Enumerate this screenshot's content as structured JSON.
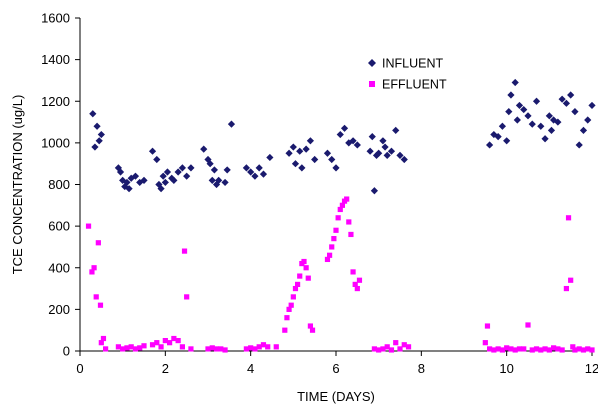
{
  "chart_data": {
    "type": "scatter",
    "xlabel": "TIME (DAYS)",
    "ylabel": "TCE CONCENTRATION (ug/L)",
    "xlim": [
      0,
      12
    ],
    "ylim": [
      0,
      1600
    ],
    "xticks": [
      "0",
      "2",
      "4",
      "6",
      "8",
      "10",
      "12"
    ],
    "yticks": [
      "0",
      "200",
      "400",
      "600",
      "800",
      "1000",
      "1200",
      "1400",
      "1600"
    ],
    "grid": false,
    "legend_position": "top-right (inside plot)",
    "series": [
      {
        "name": "INFLUENT",
        "marker": "diamond",
        "color": "#1a1a6e",
        "x": [
          0.3,
          0.35,
          0.4,
          0.45,
          0.5,
          0.9,
          0.95,
          1.0,
          1.05,
          1.1,
          1.15,
          1.2,
          1.3,
          1.4,
          1.5,
          1.7,
          1.8,
          1.85,
          1.9,
          1.95,
          2.0,
          2.05,
          2.15,
          2.2,
          2.3,
          2.4,
          2.5,
          2.6,
          2.9,
          3.0,
          3.05,
          3.1,
          3.15,
          3.2,
          3.25,
          3.4,
          3.45,
          3.55,
          3.9,
          4.0,
          4.1,
          4.2,
          4.3,
          4.45,
          4.9,
          5.0,
          5.05,
          5.15,
          5.2,
          5.3,
          5.4,
          5.5,
          5.8,
          5.9,
          6.0,
          6.1,
          6.2,
          6.3,
          6.4,
          6.5,
          6.8,
          6.85,
          6.9,
          6.95,
          7.0,
          7.1,
          7.15,
          7.2,
          7.3,
          7.4,
          7.5,
          7.6,
          9.6,
          9.7,
          9.8,
          9.9,
          10.0,
          10.05,
          10.1,
          10.2,
          10.25,
          10.3,
          10.4,
          10.5,
          10.6,
          10.7,
          10.8,
          10.9,
          11.0,
          11.05,
          11.1,
          11.2,
          11.3,
          11.4,
          11.5,
          11.6,
          11.7,
          11.8,
          11.9,
          12.0
        ],
        "y": [
          1140,
          980,
          1080,
          1010,
          1040,
          880,
          860,
          820,
          790,
          810,
          780,
          830,
          840,
          810,
          820,
          960,
          920,
          800,
          780,
          840,
          810,
          860,
          830,
          820,
          860,
          880,
          840,
          880,
          970,
          920,
          900,
          820,
          870,
          800,
          820,
          810,
          870,
          1090,
          880,
          860,
          840,
          880,
          850,
          930,
          950,
          980,
          900,
          960,
          880,
          970,
          1010,
          920,
          950,
          920,
          880,
          1040,
          1070,
          1000,
          1010,
          990,
          960,
          1030,
          770,
          940,
          950,
          1010,
          980,
          940,
          960,
          1060,
          940,
          920,
          990,
          1040,
          1030,
          1080,
          1010,
          1150,
          1230,
          1290,
          1110,
          1180,
          1160,
          1130,
          1090,
          1200,
          1080,
          1020,
          1130,
          1060,
          1110,
          1100,
          1210,
          1190,
          1230,
          1150,
          990,
          1060,
          1110,
          1180
        ]
      },
      {
        "name": "EFFLUENT",
        "marker": "square",
        "color": "#ff00ff",
        "x": [
          0.2,
          0.28,
          0.33,
          0.38,
          0.43,
          0.48,
          0.5,
          0.55,
          0.6,
          0.9,
          1.0,
          1.1,
          1.2,
          1.3,
          1.4,
          1.5,
          1.7,
          1.8,
          1.9,
          2.0,
          2.1,
          2.2,
          2.3,
          2.4,
          2.45,
          2.5,
          2.6,
          3.0,
          3.1,
          3.2,
          3.3,
          3.4,
          3.9,
          4.0,
          4.1,
          4.2,
          4.3,
          4.4,
          4.6,
          4.8,
          4.85,
          4.9,
          4.95,
          5.0,
          5.05,
          5.1,
          5.15,
          5.2,
          5.25,
          5.3,
          5.35,
          5.4,
          5.45,
          5.8,
          5.85,
          5.9,
          5.95,
          6.0,
          6.05,
          6.1,
          6.15,
          6.2,
          6.25,
          6.3,
          6.35,
          6.4,
          6.45,
          6.5,
          6.55,
          6.9,
          7.0,
          7.1,
          7.2,
          7.3,
          7.4,
          7.5,
          7.6,
          7.7,
          9.5,
          9.55,
          9.6,
          9.7,
          9.8,
          9.9,
          10.0,
          10.1,
          10.2,
          10.3,
          10.4,
          10.5,
          10.6,
          10.7,
          10.8,
          10.9,
          11.0,
          11.1,
          11.2,
          11.3,
          11.4,
          11.45,
          11.5,
          11.55,
          11.6,
          11.7,
          11.8,
          11.9,
          12.0
        ],
        "y": [
          600,
          380,
          400,
          260,
          520,
          220,
          40,
          60,
          10,
          20,
          10,
          15,
          20,
          10,
          15,
          25,
          30,
          40,
          20,
          50,
          40,
          60,
          50,
          20,
          480,
          260,
          10,
          10,
          15,
          10,
          10,
          5,
          10,
          15,
          10,
          20,
          30,
          20,
          20,
          100,
          160,
          200,
          220,
          260,
          300,
          320,
          360,
          420,
          430,
          400,
          350,
          120,
          100,
          440,
          460,
          500,
          540,
          580,
          640,
          680,
          700,
          720,
          730,
          620,
          560,
          380,
          320,
          300,
          340,
          10,
          5,
          10,
          20,
          5,
          40,
          10,
          30,
          20,
          40,
          120,
          10,
          5,
          10,
          5,
          15,
          10,
          5,
          10,
          10,
          125,
          5,
          10,
          5,
          10,
          5,
          15,
          10,
          5,
          300,
          640,
          340,
          20,
          5,
          10,
          5,
          10,
          5
        ]
      }
    ]
  }
}
